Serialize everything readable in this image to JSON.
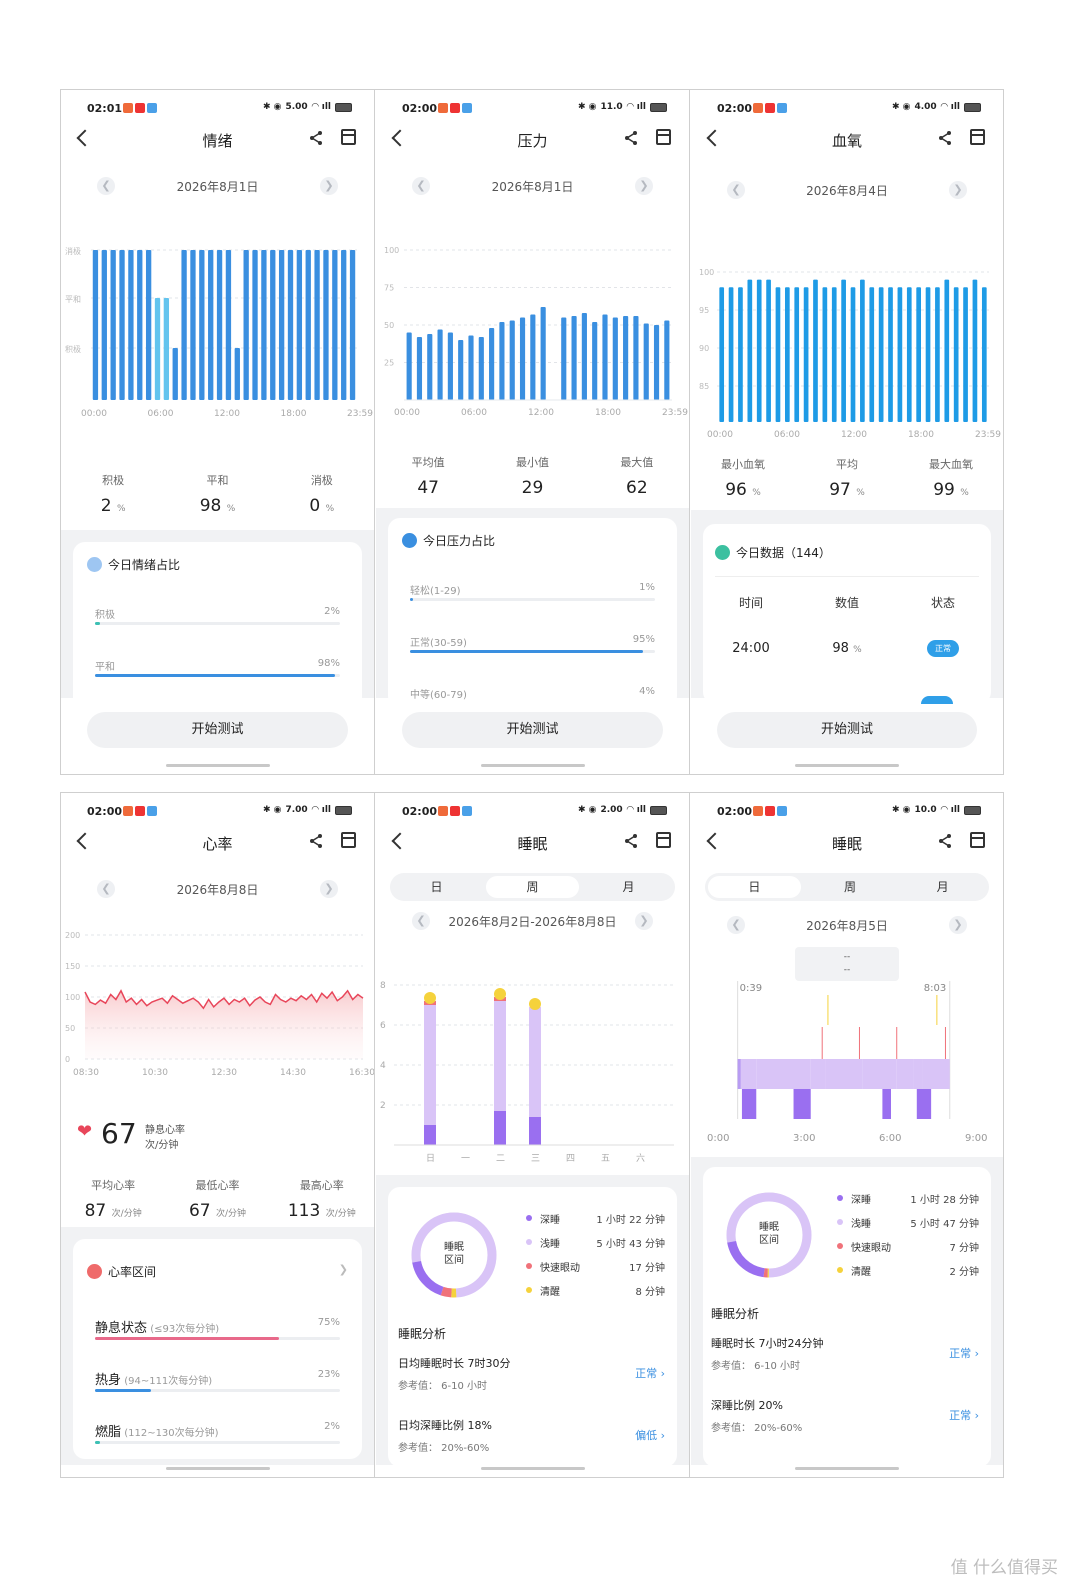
{
  "status_bars": [
    {
      "time": "02:01",
      "speed": "5.00"
    },
    {
      "time": "02:00",
      "speed": "11.0"
    },
    {
      "time": "02:00",
      "speed": "4.00"
    },
    {
      "time": "02:00",
      "speed": "7.00"
    },
    {
      "time": "02:00",
      "speed": "2.00"
    },
    {
      "time": "02:00",
      "speed": "10.0"
    }
  ],
  "emotion": {
    "title": "情绪",
    "date": "2026年8月1日",
    "ylabels": [
      "消极",
      "平和",
      "积极"
    ],
    "xlabels": [
      "00:00",
      "06:00",
      "12:00",
      "18:00",
      "23:59"
    ],
    "bars": [
      2,
      2,
      2,
      2,
      2,
      2,
      2,
      1,
      1,
      0,
      2,
      2,
      2,
      2,
      2,
      2,
      0,
      2,
      2,
      2,
      2,
      2,
      2,
      2,
      2,
      2,
      2,
      2,
      2,
      2
    ],
    "stats": [
      {
        "label": "积极",
        "value": "2",
        "unit": "%"
      },
      {
        "label": "平和",
        "value": "98",
        "unit": "%"
      },
      {
        "label": "消极",
        "value": "0",
        "unit": "%"
      }
    ],
    "card_title": "今日情绪占比",
    "rows": [
      {
        "label": "积极",
        "pct": "2%",
        "frac": 0.02,
        "color": "#3cc0b4"
      },
      {
        "label": "平和",
        "pct": "98%",
        "frac": 0.98,
        "color": "#3a8fe0"
      }
    ],
    "button": "开始测试"
  },
  "pressure": {
    "title": "压力",
    "date": "2026年8月1日",
    "ylabels": [
      "100",
      "75",
      "50",
      "25"
    ],
    "xlabels": [
      "00:00",
      "06:00",
      "12:00",
      "18:00",
      "23:59"
    ],
    "values": [
      45,
      42,
      44,
      47,
      45,
      40,
      43,
      42,
      48,
      52,
      53,
      55,
      57,
      62,
      0,
      55,
      56,
      58,
      52,
      57,
      55,
      56,
      56,
      51,
      50,
      53
    ],
    "stats": [
      {
        "label": "平均值",
        "value": "47"
      },
      {
        "label": "最小值",
        "value": "29"
      },
      {
        "label": "最大值",
        "value": "62"
      }
    ],
    "card_title": "今日压力占比",
    "rows": [
      {
        "label": "轻松(1-29)",
        "pct": "1%",
        "frac": 0.01,
        "color": "#3a8fe0"
      },
      {
        "label": "正常(30-59)",
        "pct": "95%",
        "frac": 0.95,
        "color": "#3a8fe0"
      },
      {
        "label": "中等(60-79)",
        "pct": "4%",
        "frac": 0.04,
        "color": "#3a8fe0"
      }
    ],
    "button": "开始测试"
  },
  "oxygen": {
    "title": "血氧",
    "date": "2026年8月4日",
    "ylabels": [
      "100",
      "95",
      "90",
      "85"
    ],
    "xlabels": [
      "00:00",
      "06:00",
      "12:00",
      "18:00",
      "23:59"
    ],
    "values": [
      98,
      98,
      98,
      99,
      99,
      99,
      98,
      98,
      98,
      98,
      99,
      98,
      98,
      99,
      98,
      99,
      98,
      98,
      98,
      98,
      98,
      98,
      98,
      98,
      99,
      98,
      98,
      99,
      98
    ],
    "stats": [
      {
        "label": "最小血氧",
        "value": "96",
        "unit": "%"
      },
      {
        "label": "平均",
        "value": "97",
        "unit": "%"
      },
      {
        "label": "最大血氧",
        "value": "99",
        "unit": "%"
      }
    ],
    "card_title": "今日数据（144）",
    "table_headers": [
      "时间",
      "数值",
      "状态"
    ],
    "table_rows": [
      {
        "time": "24:00",
        "value": "98",
        "unit": "%",
        "status": "正常"
      }
    ],
    "button": "开始测试"
  },
  "heart": {
    "title": "心率",
    "date": "2026年8月8日",
    "ylabels": [
      "200",
      "150",
      "100",
      "50",
      "0"
    ],
    "xlabels": [
      "08:30",
      "10:30",
      "12:30",
      "14:30",
      "16:30"
    ],
    "series": [
      108,
      92,
      88,
      95,
      90,
      104,
      96,
      110,
      92,
      98,
      88,
      96,
      86,
      92,
      95,
      98,
      90,
      102,
      96,
      90,
      94,
      98,
      92,
      82,
      96,
      84,
      92,
      98,
      88,
      96,
      92,
      98,
      86,
      95,
      100,
      92,
      88,
      104,
      96,
      92,
      98,
      94,
      102,
      96,
      104,
      92,
      106,
      98,
      108,
      94,
      100,
      110,
      96,
      104,
      98
    ],
    "resting_value": "67",
    "resting_label": "静息心率",
    "resting_unit": "次/分钟",
    "stats": [
      {
        "label": "平均心率",
        "value": "87",
        "unit": "次/分钟"
      },
      {
        "label": "最低心率",
        "value": "67",
        "unit": "次/分钟"
      },
      {
        "label": "最高心率",
        "value": "113",
        "unit": "次/分钟"
      }
    ],
    "card_title": "心率区间",
    "rows": [
      {
        "label": "静息状态",
        "range": "(≤93次每分钟)",
        "pct": "75%",
        "frac": 0.75,
        "color": "#e8698a"
      },
      {
        "label": "热身",
        "range": "(94~111次每分钟)",
        "pct": "23%",
        "frac": 0.23,
        "color": "#3a8fe0"
      },
      {
        "label": "燃脂",
        "range": "(112~130次每分钟)",
        "pct": "2%",
        "frac": 0.02,
        "color": "#3cc0b4"
      }
    ]
  },
  "sleep_week": {
    "title": "睡眠",
    "tabs": [
      "日",
      "周",
      "月"
    ],
    "date": "2026年8月2日-2026年8月8日",
    "ylabels": [
      "8",
      "6",
      "4",
      "2"
    ],
    "xlabels": [
      "日",
      "一",
      "二",
      "三",
      "四",
      "五",
      "六"
    ],
    "days": [
      {
        "deep": 1,
        "light": 6,
        "rem": 0.2,
        "awake": 0.4
      },
      {
        "deep": 0,
        "light": 0,
        "rem": 0,
        "awake": 0
      },
      {
        "deep": 1.7,
        "light": 5.5,
        "rem": 0.2,
        "awake": 0.3
      },
      {
        "deep": 1.4,
        "light": 5.5,
        "rem": 0,
        "awake": 0.4
      },
      {
        "deep": 0,
        "light": 0,
        "rem": 0,
        "awake": 0
      },
      {
        "deep": 0,
        "light": 0,
        "rem": 0,
        "awake": 0
      },
      {
        "deep": 0,
        "light": 0,
        "rem": 0,
        "awake": 0
      }
    ],
    "donut_label": "睡眠\n区间",
    "legend": [
      {
        "name": "深睡",
        "value": "1 小时 22 分钟",
        "color": "#9a6ff0",
        "frac": 0.17
      },
      {
        "name": "浅睡",
        "value": "5 小时 43 分钟",
        "color": "#d9c4f7",
        "frac": 0.77
      },
      {
        "name": "快速眼动",
        "value": "17 分钟",
        "color": "#f0727a",
        "frac": 0.04
      },
      {
        "name": "清醒",
        "value": "8 分钟",
        "color": "#f5d23c",
        "frac": 0.02
      }
    ],
    "analysis_title": "睡眠分析",
    "analysis": [
      {
        "t1": "日均睡眠时长 7时30分",
        "t2": "参考值： 6-10 小时",
        "status": "正常",
        "color": "#3a8fe0"
      },
      {
        "t1": "日均深睡比例 18%",
        "t2": "参考值： 20%-60%",
        "status": "偏低",
        "color": "#3a8fe0"
      }
    ]
  },
  "sleep_day": {
    "title": "睡眠",
    "tabs": [
      "日",
      "周",
      "月"
    ],
    "date": "2026年8月5日",
    "tooltip": [
      "--",
      "--"
    ],
    "start": "0:39",
    "end": "8:03",
    "xlabels": [
      "0:00",
      "3:00",
      "6:00",
      "9:00"
    ],
    "donut_label": "睡眠\n区间",
    "legend": [
      {
        "name": "深睡",
        "value": "1 小时 28 分钟",
        "color": "#9a6ff0",
        "frac": 0.2
      },
      {
        "name": "浅睡",
        "value": "5 小时 47 分钟",
        "color": "#d9c4f7",
        "frac": 0.78
      },
      {
        "name": "快速眼动",
        "value": "7 分钟",
        "color": "#f0727a",
        "frac": 0.015
      },
      {
        "name": "清醒",
        "value": "2 分钟",
        "color": "#f5d23c",
        "frac": 0.005
      }
    ],
    "analysis_title": "睡眠分析",
    "analysis": [
      {
        "t1": "睡眠时长 7小时24分钟",
        "t2": "参考值： 6-10 小时",
        "status": "正常",
        "color": "#3a8fe0"
      },
      {
        "t1": "深睡比例 20%",
        "t2": "参考值： 20%-60%",
        "status": "正常",
        "color": "#3a8fe0"
      }
    ]
  },
  "watermark": "值 什么值得买"
}
